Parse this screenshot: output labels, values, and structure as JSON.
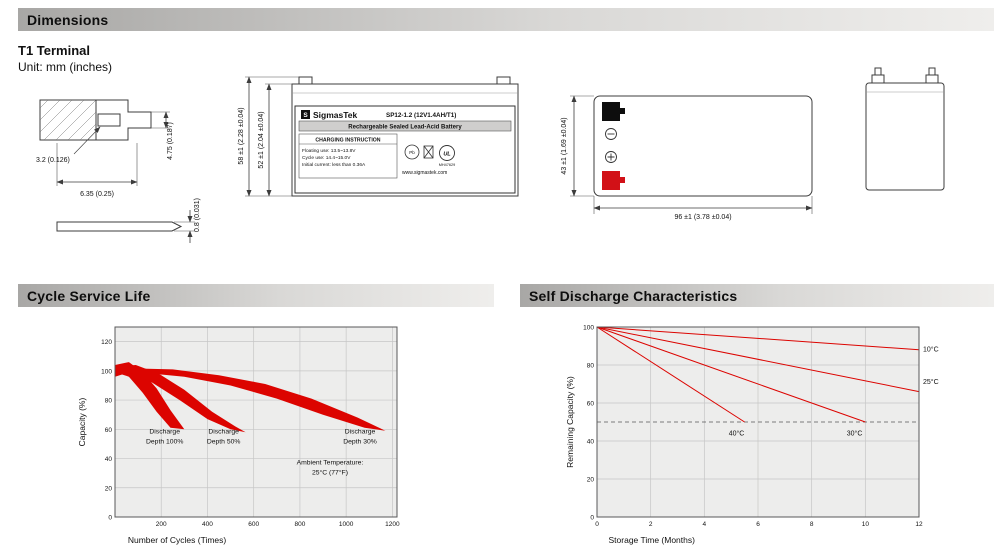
{
  "colors": {
    "accent_red": "#d21117",
    "chart_red": "#dc0400",
    "header_bar_gray": "#b3b2b0",
    "plot_background": "#ededec"
  },
  "sections": {
    "dimensions": {
      "title": "Dimensions",
      "subtitle": "T1 Terminal",
      "unit_note": "Unit: mm (inches)"
    },
    "cycle": {
      "title": "Cycle Service Life"
    },
    "self_discharge": {
      "title": "Self Discharge Characteristics"
    }
  },
  "drawings": {
    "terminal_detail": {
      "dim_tab_height": "4.75 (0.187)",
      "dim_hole": "3.2 (0.126)",
      "dim_tab_length": "6.35 (0.25)",
      "dim_thickness": "0.8 (0.031)"
    },
    "front_view": {
      "dim_total_height": "58 ±1 (2.28 ±0.04)",
      "dim_case_height": "52 ±1 (2.04 ±0.04)",
      "label": {
        "logo_letter": "S",
        "brand": "SigmasTek",
        "model": "SP12-1.2 (12V1.4AH/T1)",
        "battery_type": "Rechargeable Sealed Lead-Acid Battery",
        "charging_title": "CHARGING INSTRUCTION",
        "charging_line1": "Floating use: 13.5~13.8V",
        "charging_line2": "Cycle use: 14.4~15.0V",
        "charging_line3": "Initial current: less than 0.36A",
        "pb1": "Pb",
        "ul": "UL",
        "ul_number": "MH47629",
        "website": "www.sigmastek.com"
      }
    },
    "top_view": {
      "dim_width": "43 ±1 (1.69 ±0.04)",
      "dim_length": "96 ±1 (3.78 ±0.04)"
    }
  },
  "chart_data": [
    {
      "id": "cycle_service_life",
      "type": "area",
      "title": "Cycle Service Life",
      "xlabel": "Number of Cycles (Times)",
      "ylabel": "Capacity (%)",
      "xlim": [
        0,
        1220
      ],
      "ylim": [
        0,
        130
      ],
      "xticks": [
        200,
        400,
        600,
        800,
        1000,
        1200
      ],
      "yticks": [
        0,
        20,
        40,
        60,
        80,
        100,
        120
      ],
      "color": "#dc0400",
      "grid": true,
      "bands": [
        {
          "name": "Discharge Depth 100%",
          "polygon": [
            [
              0,
              104
            ],
            [
              60,
              106
            ],
            [
              120,
              99
            ],
            [
              180,
              88
            ],
            [
              240,
              73
            ],
            [
              300,
              60
            ],
            [
              240,
              61
            ],
            [
              180,
              72
            ],
            [
              120,
              85
            ],
            [
              60,
              96
            ],
            [
              0,
              99
            ]
          ]
        },
        {
          "name": "Discharge Depth 50%",
          "polygon": [
            [
              0,
              103
            ],
            [
              90,
              104
            ],
            [
              190,
              98
            ],
            [
              300,
              87
            ],
            [
              420,
              72
            ],
            [
              520,
              62
            ],
            [
              565,
              58
            ],
            [
              500,
              60
            ],
            [
              400,
              67
            ],
            [
              280,
              80
            ],
            [
              160,
              92
            ],
            [
              60,
              99
            ],
            [
              0,
              96
            ]
          ]
        },
        {
          "name": "Discharge Depth 30%",
          "polygon": [
            [
              0,
              102
            ],
            [
              250,
              101
            ],
            [
              450,
              97
            ],
            [
              650,
              91
            ],
            [
              850,
              81
            ],
            [
              1050,
              68
            ],
            [
              1170,
              59
            ],
            [
              1080,
              61
            ],
            [
              900,
              70
            ],
            [
              700,
              81
            ],
            [
              500,
              90
            ],
            [
              300,
              96
            ],
            [
              100,
              99
            ],
            [
              0,
              97
            ]
          ]
        }
      ],
      "annotations": [
        {
          "lines": [
            "Discharge",
            "Depth 100%"
          ],
          "x": 215,
          "y": 57
        },
        {
          "lines": [
            "Discharge",
            "Depth 50%"
          ],
          "x": 470,
          "y": 57
        },
        {
          "lines": [
            "Discharge",
            "Depth 30%"
          ],
          "x": 1060,
          "y": 57
        },
        {
          "lines": [
            "Ambient Temperature:",
            "25°C (77°F)"
          ],
          "x": 930,
          "y": 36
        }
      ]
    },
    {
      "id": "self_discharge",
      "type": "line",
      "title": "Self Discharge Characteristics",
      "xlabel": "Storage Time (Months)",
      "ylabel": "Remaining Capacity (%)",
      "xlim": [
        0,
        12
      ],
      "ylim": [
        0,
        100
      ],
      "xticks": [
        0,
        2,
        4,
        6,
        8,
        10,
        12
      ],
      "yticks": [
        0,
        20,
        40,
        60,
        80,
        100
      ],
      "color": "#dc0400",
      "grid": true,
      "reference_line": {
        "y": 50,
        "style": "dashed"
      },
      "lines": [
        {
          "name": "10°C",
          "points": [
            [
              0,
              100
            ],
            [
              12,
              88
            ]
          ],
          "label_at": [
            12.15,
            87
          ],
          "label_anchor": "start"
        },
        {
          "name": "25°C",
          "points": [
            [
              0,
              100
            ],
            [
              12,
              66
            ]
          ],
          "label_at": [
            12.15,
            70
          ],
          "label_anchor": "start"
        },
        {
          "name": "30°C",
          "points": [
            [
              0,
              100
            ],
            [
              10,
              50
            ]
          ],
          "label_at": [
            9.6,
            43
          ],
          "label_anchor": "middle"
        },
        {
          "name": "40°C",
          "points": [
            [
              0,
              100
            ],
            [
              5.5,
              50
            ]
          ],
          "label_at": [
            5.2,
            43
          ],
          "label_anchor": "middle"
        }
      ]
    }
  ]
}
